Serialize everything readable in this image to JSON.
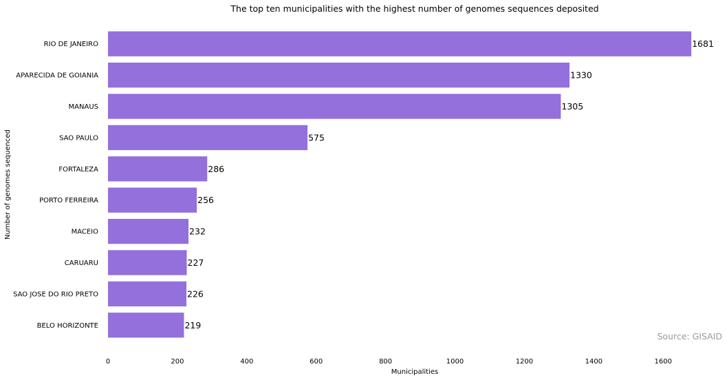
{
  "chart_data": {
    "type": "bar",
    "orientation": "horizontal",
    "title": "The top ten municipalities with the highest number of genomes sequences deposited",
    "xlabel": "Municipalities",
    "ylabel": "Number of genomes sequenced",
    "categories": [
      "RIO DE JANEIRO",
      "APARECIDA DE GOIANIA",
      "MANAUS",
      "SAO PAULO",
      "FORTALEZA",
      "PORTO FERREIRA",
      "MACEIO",
      "CARUARU",
      "SAO JOSE DO RIO PRETO",
      "BELO HORIZONTE"
    ],
    "values": [
      1681,
      1330,
      1305,
      575,
      286,
      256,
      232,
      227,
      226,
      219
    ],
    "value_labels": [
      "1681",
      "1330",
      "1305",
      "575",
      "286",
      "256",
      "232",
      "227",
      "226",
      "219"
    ],
    "xticks": [
      0,
      200,
      400,
      600,
      800,
      1000,
      1200,
      1400,
      1600
    ],
    "xtick_labels": [
      "0",
      "200",
      "400",
      "600",
      "800",
      "1000",
      "1200",
      "1400",
      "1600"
    ],
    "xlim": [
      0,
      1770
    ],
    "grid": false,
    "bar_color": "#9370DB",
    "annotation": "Source: GISAID"
  }
}
